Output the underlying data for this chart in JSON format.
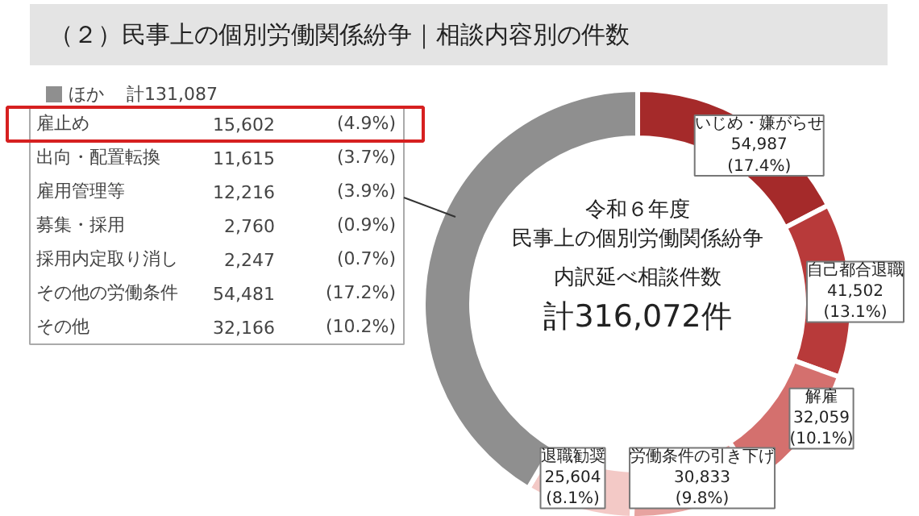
{
  "chart_data": {
    "type": "donut",
    "title": "（２）民事上の個別労働関係紛争｜相談内容別の件数",
    "categories": [
      "いじめ・嫌がらせ",
      "自己都合退職",
      "解雇",
      "労働条件の引き下げ",
      "退職勧奨",
      "ほか"
    ],
    "values": [
      54987,
      41502,
      32059,
      30833,
      25604,
      131087
    ],
    "colors": [
      "#a52a2a",
      "#b83a3a",
      "#d4706e",
      "#e7a3a0",
      "#f3c9c6",
      "#8f8f8f"
    ],
    "value_labels": [
      "54,987\n(17.4%)",
      "41,502\n(13.1%)",
      "32,059\n(10.1%)",
      "30,833\n(9.8%)",
      "25,604\n(8.1%)",
      "計131,087"
    ],
    "annotations": [
      "令和６年度",
      "民事上の個別労働関係紛争",
      "内訳延べ相談件数",
      "計316,072件",
      "雇止め 15,602 (4.9%)",
      "出向・配置転換 11,615 (3.7%)",
      "雇用管理等 12,216 (3.9%)",
      "募集・採用 2,760 (0.9%)",
      "採用内定取り消し 2,247 (0.7%)",
      "その他の労働条件 54,481 (17.2%)",
      "その他 32,166 (10.2%)"
    ]
  }
}
